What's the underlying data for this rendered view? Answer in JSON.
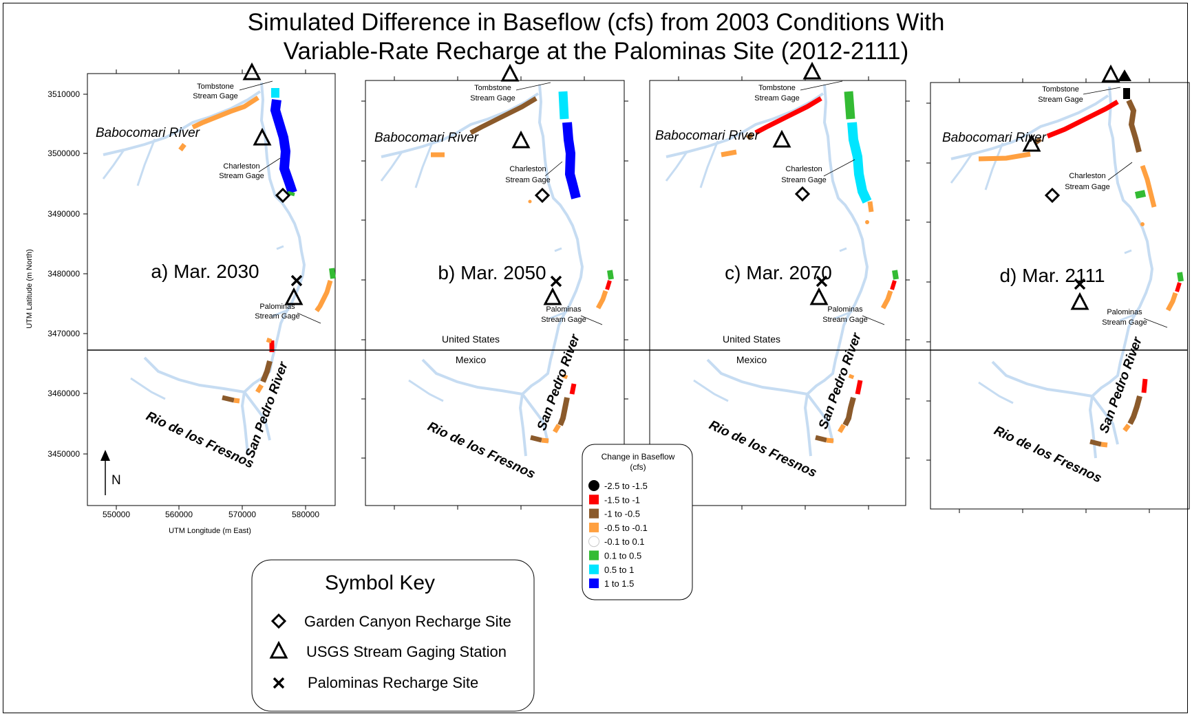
{
  "title": {
    "line1": "Simulated Difference in Baseflow (cfs) from 2003 Conditions With",
    "line2": "Variable-Rate Recharge at the Palominas Site (2012-2111)"
  },
  "axes": {
    "y_label": "UTM Latitude (m North)",
    "x_label": "UTM Longitude (m East)",
    "y_ticks": [
      "3510000",
      "3500000",
      "3490000",
      "3480000",
      "3470000",
      "3460000",
      "3450000"
    ],
    "x_ticks": [
      "550000",
      "560000",
      "570000",
      "580000"
    ]
  },
  "north_arrow": "N",
  "panels": [
    {
      "label": "a) Mar. 2030"
    },
    {
      "label": "b) Mar. 2050"
    },
    {
      "label": "c) Mar. 2070"
    },
    {
      "label": "d) Mar. 2111"
    }
  ],
  "place_labels": {
    "babocomari": "Babocomari River",
    "san_pedro": "San Pedro River",
    "rio_fresnos": "Rio de los Fresnos",
    "tombstone_1": "Tombstone",
    "tombstone_2": "Stream Gage",
    "charleston_1": "Charleston",
    "charleston_2": "Stream Gage",
    "palominas_1": "Palominas",
    "palominas_2": "Stream Gage",
    "us": "United States",
    "mexico": "Mexico"
  },
  "legend": {
    "title_line1": "Change in Baseflow",
    "title_line2": "(cfs)",
    "items": [
      {
        "label": "-2.5  to  -1.5",
        "color": "#000000"
      },
      {
        "label": "-1.5  to  -1",
        "color": "#ff0000"
      },
      {
        "label": "-1  to  -0.5",
        "color": "#8b5a2b"
      },
      {
        "label": "-0.5  to  -0.1",
        "color": "#ffa040"
      },
      {
        "label": "-0.1  to  0.1",
        "color": "#ffffff"
      },
      {
        "label": "0.1  to  0.5",
        "color": "#33bb33"
      },
      {
        "label": "0.5  to  1",
        "color": "#00e5ff"
      },
      {
        "label": "1  to  1.5",
        "color": "#0000ff"
      }
    ]
  },
  "symbol_key": {
    "title": "Symbol Key",
    "items": [
      {
        "label": "Garden Canyon Recharge Site",
        "icon": "diamond-icon"
      },
      {
        "label": "USGS Stream Gaging Station",
        "icon": "triangle-icon"
      },
      {
        "label": "Palominas Recharge Site",
        "icon": "cross-icon"
      }
    ]
  },
  "colors": {
    "river": "#c6dcf2",
    "border_line": "#000000"
  }
}
